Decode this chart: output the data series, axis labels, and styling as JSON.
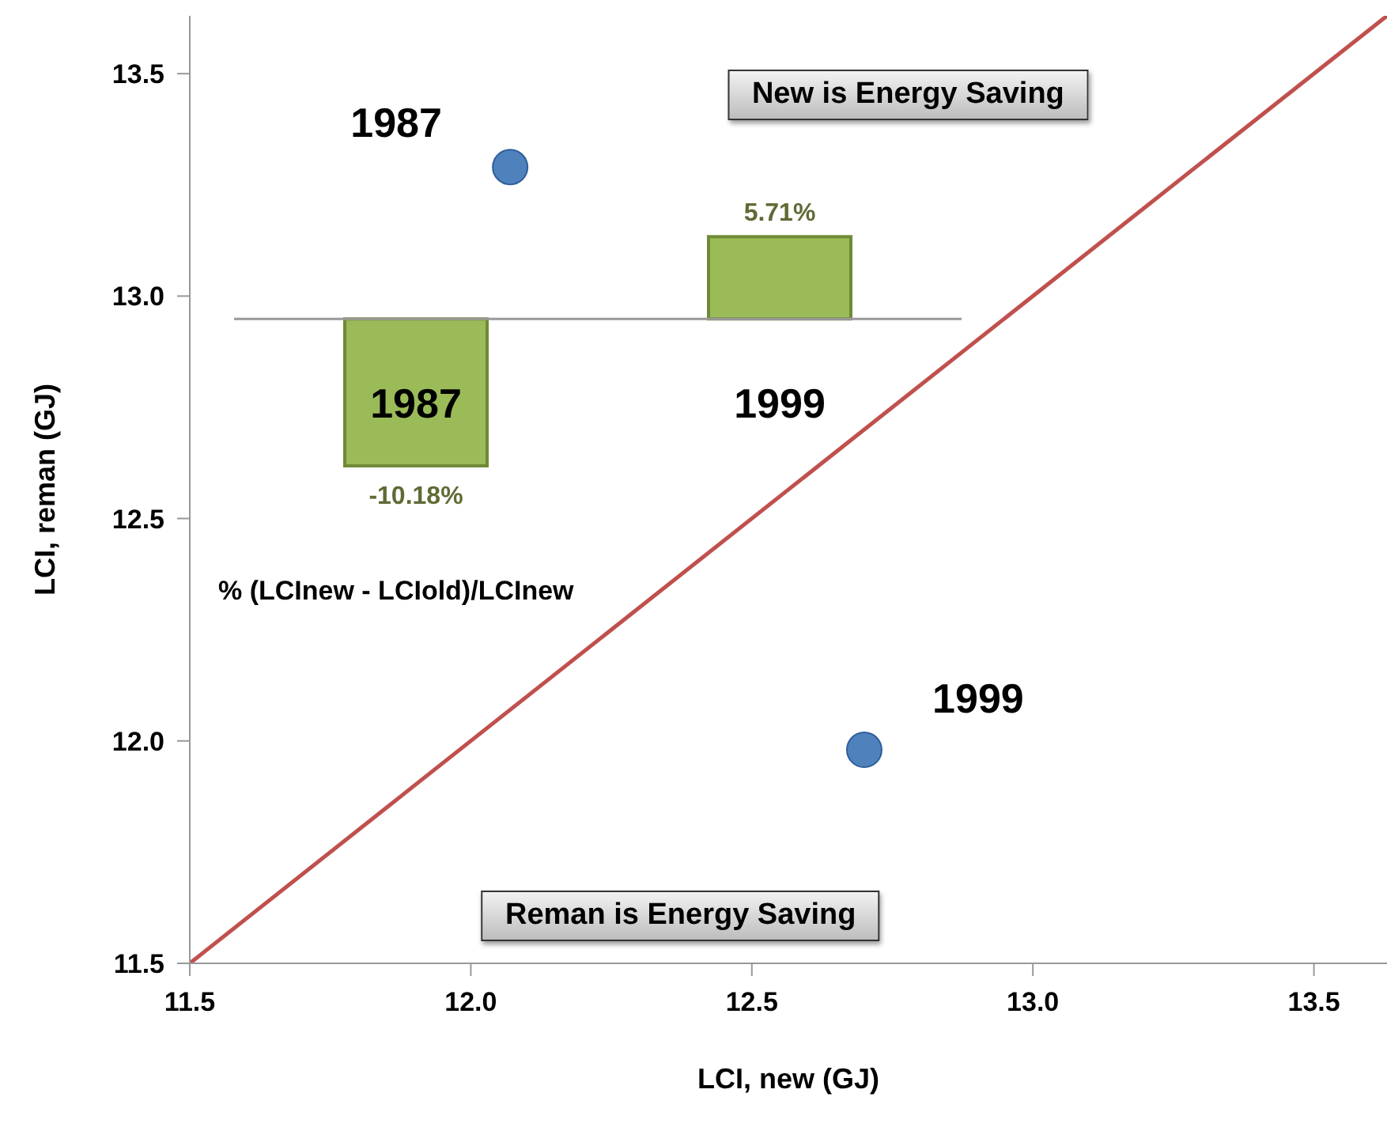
{
  "chart_data": [
    {
      "type": "scatter",
      "xlabel": "LCI, new (GJ)",
      "ylabel": "LCI,  reman (GJ)",
      "xlim": [
        11.5,
        13.63
      ],
      "ylim": [
        11.5,
        13.63
      ],
      "xticks": [
        11.5,
        {
          "value": 12,
          "label": "12.0"
        },
        12.5,
        {
          "value": 13,
          "label": "13.0"
        },
        13.5
      ],
      "yticks": [
        11.5,
        {
          "value": 12,
          "label": "12.0"
        },
        12.5,
        {
          "value": 13,
          "label": "13.0"
        },
        13.5
      ],
      "marker": "circle",
      "series": [
        {
          "x": [
            12.07,
            12.7
          ],
          "values": [
            13.29,
            11.98
          ],
          "color": "#4f81bd"
        },
        {
          "type": "line",
          "x": [
            11.5,
            13.63
          ],
          "values": [
            11.5,
            13.63
          ],
          "color": "#c0504d",
          "marker": "none",
          "line_style": "solid"
        }
      ],
      "annotations": [
        "New is Energy Saving",
        "Reman is Energy Saving",
        {
          "text": "1987",
          "x": 12.07,
          "y": 13.29
        },
        {
          "text": "1999",
          "x": 12.7,
          "y": 11.98
        }
      ]
    },
    {
      "type": "bar",
      "xlabel": "% (LCInew - LCIold)/LCInew",
      "categories": [
        "1987",
        "1999"
      ],
      "values": [
        -10.18,
        5.71
      ],
      "value_labels": [
        "-10.18%",
        "5.71%"
      ],
      "color": "#9bbb59"
    }
  ]
}
